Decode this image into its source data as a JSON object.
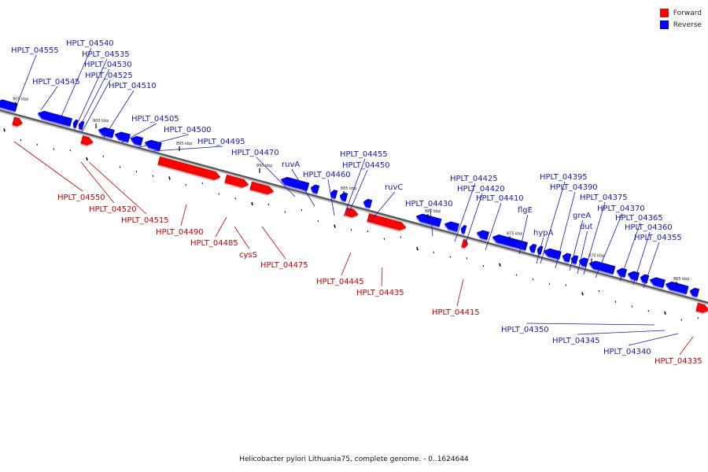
{
  "legend": {
    "forward": {
      "label": "Forward",
      "color": "#ff0000"
    },
    "reverse": {
      "label": "Reverse",
      "color": "#0000ff"
    }
  },
  "caption": "Helicobacter pylori Lithuania75, complete genome. - 0..1624644",
  "ticks": [
    "905 kbp",
    "900 kbp",
    "895 kbp",
    "890 kbp",
    "885 kbp",
    "880 kbp",
    "875 kbp",
    "870 kbp",
    "865 kbp"
  ],
  "reverse_labels": [
    "HPLT_04555",
    "HPLT_04540",
    "HPLT_04535",
    "HPLT_04530",
    "HPLT_04545",
    "HPLT_04525",
    "HPLT_04510",
    "HPLT_04505",
    "HPLT_04500",
    "HPLT_04495",
    "HPLT_04470",
    "ruvA",
    "HPLT_04460",
    "HPLT_04455",
    "HPLT_04450",
    "ruvC",
    "HPLT_04430",
    "HPLT_04425",
    "HPLT_04420",
    "HPLT_04410",
    "flgE",
    "hypA",
    "HPLT_04395",
    "HPLT_04390",
    "greA",
    "dut",
    "HPLT_04375",
    "HPLT_04370",
    "HPLT_04365",
    "HPLT_04360",
    "HPLT_04355",
    "HPLT_04350",
    "HPLT_04345",
    "HPLT_04340"
  ],
  "forward_labels": [
    "HPLT_04550",
    "HPLT_04520",
    "HPLT_04515",
    "HPLT_04490",
    "HPLT_04485",
    "cysS",
    "HPLT_04475",
    "HPLT_04445",
    "HPLT_04435",
    "HPLT_04415",
    "HPLT_04335"
  ]
}
